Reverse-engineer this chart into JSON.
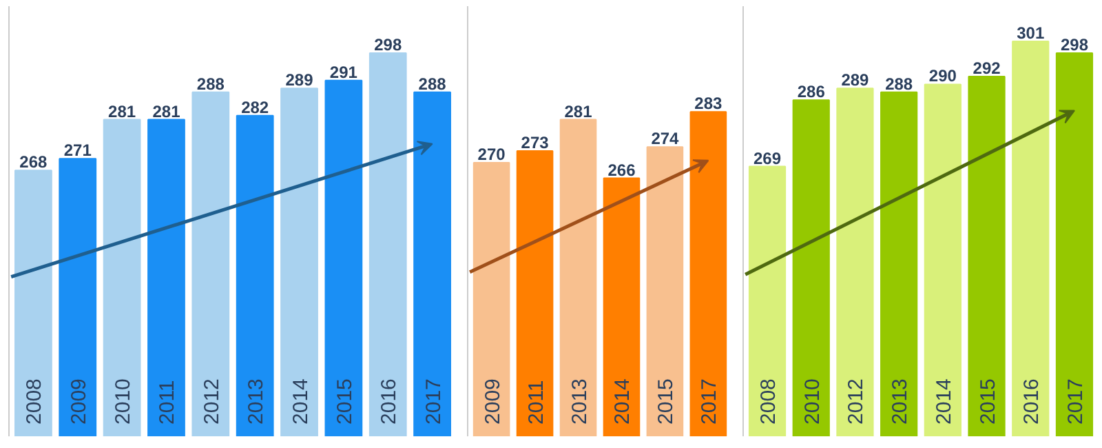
{
  "chart_data": [
    {
      "type": "bar",
      "categories": [
        "2008",
        "2009",
        "2010",
        "2011",
        "2012",
        "2013",
        "2014",
        "2015",
        "2016",
        "2017"
      ],
      "values": [
        268,
        271,
        281,
        281,
        288,
        282,
        289,
        291,
        298,
        288
      ],
      "colors": [
        "#a9d2ef",
        "#1a8ff5",
        "#a9d2ef",
        "#1a8ff5",
        "#a9d2ef",
        "#1a8ff5",
        "#a9d2ef",
        "#1a8ff5",
        "#a9d2ef",
        "#1a8ff5"
      ],
      "ylim": [
        200,
        310
      ],
      "data_labels": true,
      "tick_labels": false,
      "grid": false
    },
    {
      "type": "bar",
      "categories": [
        "2009",
        "2011",
        "2013",
        "2014",
        "2015",
        "2017"
      ],
      "values": [
        270,
        273,
        281,
        266,
        274,
        283
      ],
      "colors": [
        "#f8c08f",
        "#ff7f00",
        "#f8c08f",
        "#ff7f00",
        "#f8c08f",
        "#ff7f00"
      ],
      "ylim": [
        200,
        310
      ],
      "data_labels": true,
      "tick_labels": false,
      "grid": false
    },
    {
      "type": "bar",
      "categories": [
        "2008",
        "2010",
        "2012",
        "2013",
        "2014",
        "2015",
        "2016",
        "2017"
      ],
      "values": [
        269,
        286,
        289,
        288,
        290,
        292,
        301,
        298
      ],
      "colors": [
        "#d9f07a",
        "#95c800",
        "#d9f07a",
        "#95c800",
        "#d9f07a",
        "#95c800",
        "#d9f07a",
        "#95c800"
      ],
      "ylim": [
        200,
        310
      ],
      "data_labels": true,
      "tick_labels": false,
      "grid": false
    }
  ]
}
